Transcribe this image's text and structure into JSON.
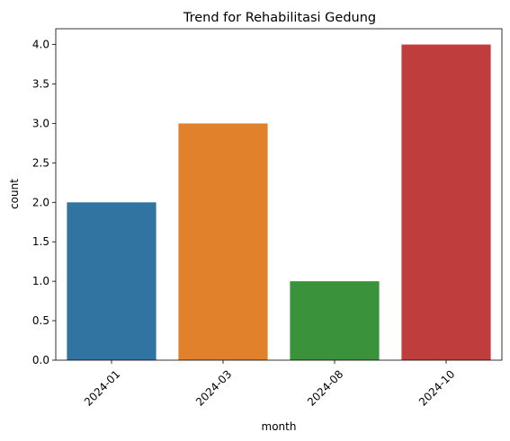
{
  "chart_data": {
    "type": "bar",
    "title": "Trend for Rehabilitasi Gedung",
    "xlabel": "month",
    "ylabel": "count",
    "categories": [
      "2024-01",
      "2024-03",
      "2024-08",
      "2024-10"
    ],
    "values": [
      2,
      3,
      1,
      4
    ],
    "colors": [
      "#3274a1",
      "#e1812c",
      "#3a923a",
      "#c03d3e"
    ],
    "ylim": [
      0,
      4.2
    ],
    "yticks": [
      "0.0",
      "0.5",
      "1.0",
      "1.5",
      "2.0",
      "2.5",
      "3.0",
      "3.5",
      "4.0"
    ],
    "x_tick_rotation": "45 degrees",
    "grid": false,
    "legend": "none"
  }
}
